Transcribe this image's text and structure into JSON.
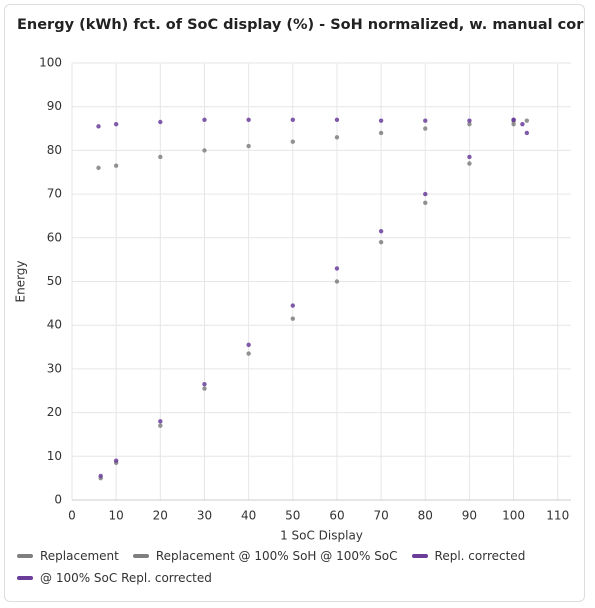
{
  "chart_data": {
    "type": "scatter",
    "title": "Energy (kWh) fct. of SoC display (%) - SoH normalized, w. manual correct...",
    "x_label": "1 SoC Display",
    "y_label": "Energy",
    "xlim": [
      0,
      113
    ],
    "ylim": [
      0,
      100
    ],
    "xticks": [
      0,
      10,
      20,
      30,
      40,
      50,
      60,
      70,
      80,
      90,
      100,
      110
    ],
    "yticks": [
      0,
      10,
      20,
      30,
      40,
      50,
      60,
      70,
      80,
      90,
      100
    ],
    "grid": true,
    "legend": "bottom",
    "series": [
      {
        "name": "Replacement",
        "color": "#7f7f7f",
        "x": [
          6.5,
          10,
          20,
          30,
          40,
          50,
          60,
          70,
          80,
          90,
          100
        ],
        "values": [
          5,
          8.5,
          17,
          25.5,
          33.5,
          41.5,
          50,
          59,
          68,
          77,
          86
        ]
      },
      {
        "name": "Replacement @ 100% SoH @ 100% SoC",
        "color": "#7f7f7f",
        "x": [
          6,
          10,
          20,
          30,
          40,
          50,
          60,
          70,
          80,
          90,
          100,
          103
        ],
        "values": [
          76,
          76.5,
          78.5,
          80,
          81,
          82,
          83,
          84,
          85,
          86,
          86.7,
          86.8
        ]
      },
      {
        "name": "Repl. corrected",
        "color": "#6a3d9a",
        "x": [
          6.5,
          10,
          20,
          30,
          40,
          50,
          60,
          70,
          80,
          90,
          100
        ],
        "values": [
          5.5,
          9,
          18,
          26.5,
          35.5,
          44.5,
          53,
          61.5,
          70,
          78.5,
          87
        ]
      },
      {
        "name": "@ 100% SoC Repl. corrected",
        "color": "#6a3d9a",
        "x": [
          6,
          10,
          20,
          30,
          40,
          50,
          60,
          70,
          80,
          90,
          100,
          102,
          103
        ],
        "values": [
          85.5,
          86,
          86.5,
          87,
          87,
          87,
          87,
          86.8,
          86.8,
          86.8,
          87,
          86,
          84
        ]
      }
    ]
  }
}
